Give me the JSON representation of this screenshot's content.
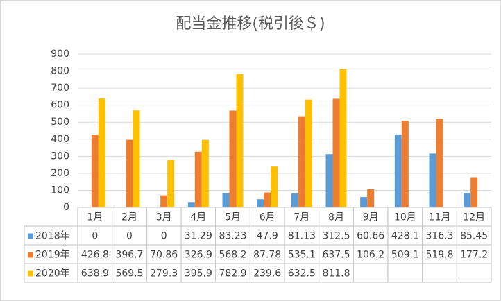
{
  "chart_data": {
    "type": "bar",
    "title": "配当金推移(税引後＄)",
    "categories": [
      "1月",
      "2月",
      "3月",
      "4月",
      "5月",
      "6月",
      "7月",
      "8月",
      "9月",
      "10月",
      "11月",
      "12月"
    ],
    "series": [
      {
        "name": "2018年",
        "color": "#5b9bd5",
        "values": [
          0,
          0,
          0,
          31.29,
          83.23,
          47.9,
          81.13,
          312.5,
          60.66,
          428.1,
          316.3,
          85.45
        ]
      },
      {
        "name": "2019年",
        "color": "#ed7d31",
        "values": [
          426.8,
          396.7,
          70.86,
          326.9,
          568.2,
          87.78,
          535.1,
          637.5,
          106.2,
          509.1,
          519.8,
          177.2
        ]
      },
      {
        "name": "2020年",
        "color": "#ffc000",
        "values": [
          638.9,
          569.5,
          279.3,
          395.9,
          782.9,
          239.6,
          632.5,
          811.8,
          null,
          null,
          null,
          null
        ]
      }
    ],
    "ylim": [
      0,
      900
    ],
    "yticks": [
      0,
      100,
      200,
      300,
      400,
      500,
      600,
      700,
      800,
      900
    ],
    "grid": true,
    "data_table": true
  }
}
